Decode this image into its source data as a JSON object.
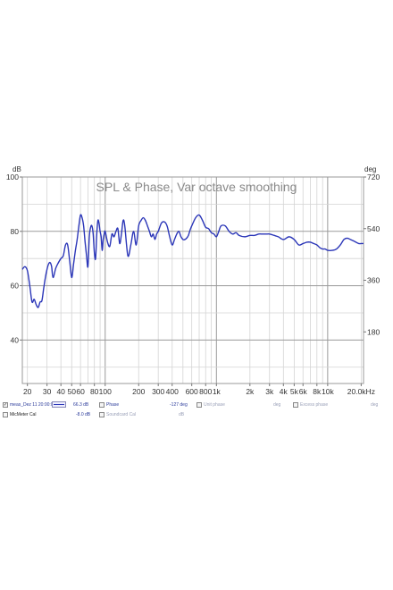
{
  "chart_data": {
    "type": "line",
    "title": "SPL & Phase, Var octave smoothing",
    "left_unit": "dB",
    "right_unit": "deg",
    "xscale": "log",
    "xlim": [
      18,
      21000
    ],
    "ylim": [
      24,
      100
    ],
    "y2lim": [
      0,
      720
    ],
    "grid": true,
    "x_ticks": [
      {
        "v": 20,
        "label": "20"
      },
      {
        "v": 30,
        "label": "30"
      },
      {
        "v": 40,
        "label": "40"
      },
      {
        "v": 50,
        "label": "50"
      },
      {
        "v": 60,
        "label": "60"
      },
      {
        "v": 80,
        "label": "80"
      },
      {
        "v": 100,
        "label": "100"
      },
      {
        "v": 200,
        "label": "200"
      },
      {
        "v": 300,
        "label": "300"
      },
      {
        "v": 400,
        "label": "400"
      },
      {
        "v": 600,
        "label": "600"
      },
      {
        "v": 800,
        "label": "800"
      },
      {
        "v": 1000,
        "label": "1k"
      },
      {
        "v": 2000,
        "label": "2k"
      },
      {
        "v": 3000,
        "label": "3k"
      },
      {
        "v": 4000,
        "label": "4k"
      },
      {
        "v": 5000,
        "label": "5k"
      },
      {
        "v": 6000,
        "label": "6k"
      },
      {
        "v": 8000,
        "label": "8k"
      },
      {
        "v": 10000,
        "label": "10k"
      },
      {
        "v": 20000,
        "label": "20.0kHz"
      }
    ],
    "y_ticks": [
      {
        "v": 100,
        "label": "100"
      },
      {
        "v": 80,
        "label": "80"
      },
      {
        "v": 60,
        "label": "60"
      },
      {
        "v": 40,
        "label": "40"
      }
    ],
    "y2_ticks": [
      {
        "v": 720,
        "label": "720"
      },
      {
        "v": 540,
        "label": "540"
      },
      {
        "v": 360,
        "label": "360"
      },
      {
        "v": 180,
        "label": "180"
      }
    ],
    "series": [
      {
        "color": "#2b36b8",
        "x": [
          18,
          19,
          20,
          21,
          22,
          23,
          24,
          25,
          26,
          27,
          28,
          29,
          30,
          31,
          32,
          33,
          34,
          36,
          38,
          40,
          42,
          44,
          46,
          48,
          50,
          52,
          54,
          56,
          58,
          60,
          62,
          64,
          66,
          68,
          70,
          72,
          74,
          76,
          78,
          80,
          82,
          84,
          86,
          88,
          90,
          92,
          94,
          96,
          98,
          100,
          105,
          110,
          115,
          120,
          125,
          130,
          135,
          140,
          145,
          150,
          160,
          170,
          180,
          190,
          200,
          210,
          220,
          230,
          240,
          250,
          260,
          270,
          280,
          290,
          300,
          320,
          340,
          360,
          380,
          400,
          420,
          440,
          460,
          480,
          500,
          520,
          540,
          560,
          580,
          600,
          650,
          700,
          750,
          800,
          850,
          900,
          950,
          1000,
          1050,
          1100,
          1200,
          1300,
          1400,
          1500,
          1600,
          1800,
          2000,
          2200,
          2400,
          2600,
          2800,
          3000,
          3300,
          3600,
          4000,
          4500,
          5000,
          5500,
          6000,
          6500,
          7000,
          7500,
          8000,
          8500,
          9000,
          9500,
          10000,
          11000,
          12000,
          13000,
          14000,
          15000,
          16000,
          17000,
          18000,
          19000,
          20000,
          21000
        ],
        "y": [
          66,
          67,
          65.5,
          60,
          54,
          55,
          53,
          52,
          54,
          54.5,
          59,
          63,
          66,
          68,
          68.5,
          67,
          63,
          66.5,
          68.5,
          70,
          71,
          75,
          75,
          69,
          63,
          68,
          73,
          77,
          82,
          86,
          85,
          82,
          76,
          71,
          67,
          78,
          81.5,
          82,
          79,
          72,
          70,
          79,
          84,
          83,
          80,
          78,
          73,
          77,
          79,
          80,
          76,
          74.5,
          79,
          78,
          80,
          81,
          75.5,
          79,
          84,
          82,
          71,
          75,
          80,
          75,
          82,
          84,
          85,
          84,
          82,
          80,
          78,
          79,
          77,
          79,
          80,
          83,
          83.5,
          82,
          78,
          75,
          77,
          79,
          80,
          78,
          77,
          77,
          77.5,
          78.5,
          80.5,
          82,
          85,
          86,
          84,
          81.5,
          81,
          79.5,
          79,
          78,
          80,
          82,
          82,
          80,
          79,
          79.5,
          78.5,
          78,
          78.5,
          78.5,
          79,
          79,
          79,
          79,
          78.5,
          78,
          77,
          78,
          77,
          75,
          75.5,
          76,
          76,
          75.5,
          75,
          74,
          73.5,
          73.5,
          73,
          73,
          73.5,
          75,
          77,
          77.5,
          77,
          76.5,
          76,
          75.5,
          75.5,
          75.5
        ]
      }
    ]
  },
  "legend": {
    "rows": [
      {
        "checked": "✓",
        "name": "meas_Dez 11 20:00:00",
        "value": "66.3 dB",
        "phase_label": "Phase",
        "phase_value": "-127 deg",
        "unit1_label": "Unit phase",
        "unit1_value": "deg",
        "excess_label": "Excess phase",
        "excess_value": "deg"
      },
      {
        "checked": "",
        "name": "MicMeter Cal",
        "value": "-8.0 dB",
        "soundcard_label": "Soundcard Cal",
        "soundcard_value": "dB"
      }
    ]
  }
}
